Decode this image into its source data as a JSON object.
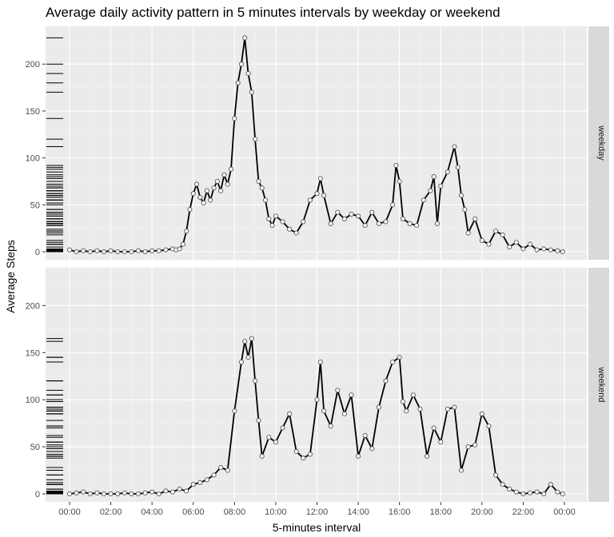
{
  "chart_data": {
    "type": "line",
    "title": "Average daily activity pattern in 5 minutes intervals by weekday or weekend",
    "xlabel": "5-minutes interval",
    "ylabel": "Average Steps",
    "x_unit": "time of day (HH:MM)",
    "xlim": [
      "00:00",
      "23:55"
    ],
    "ylim": [
      0,
      230
    ],
    "x_ticks": [
      "00:00",
      "02:00",
      "04:00",
      "06:00",
      "08:00",
      "10:00",
      "12:00",
      "14:00",
      "16:00",
      "18:00",
      "20:00",
      "22:00",
      "00:00"
    ],
    "y_ticks": [
      0,
      50,
      100,
      150,
      200
    ],
    "grid": true,
    "legend": "none",
    "facets": [
      "weekday",
      "weekend"
    ],
    "series": [
      {
        "name": "weekday",
        "x": [
          "00:00",
          "00:20",
          "00:40",
          "01:00",
          "01:20",
          "01:40",
          "02:00",
          "02:20",
          "02:40",
          "03:00",
          "03:20",
          "03:40",
          "04:00",
          "04:20",
          "04:40",
          "05:00",
          "05:10",
          "05:20",
          "05:30",
          "05:40",
          "05:50",
          "06:00",
          "06:10",
          "06:20",
          "06:30",
          "06:40",
          "06:50",
          "07:00",
          "07:10",
          "07:20",
          "07:30",
          "07:40",
          "07:50",
          "08:00",
          "08:10",
          "08:20",
          "08:30",
          "08:40",
          "08:50",
          "09:00",
          "09:10",
          "09:20",
          "09:30",
          "09:40",
          "09:50",
          "10:00",
          "10:20",
          "10:40",
          "11:00",
          "11:20",
          "11:40",
          "12:00",
          "12:10",
          "12:20",
          "12:40",
          "13:00",
          "13:20",
          "13:40",
          "14:00",
          "14:20",
          "14:40",
          "15:00",
          "15:20",
          "15:40",
          "15:50",
          "16:00",
          "16:10",
          "16:30",
          "16:50",
          "17:10",
          "17:30",
          "17:40",
          "17:50",
          "18:00",
          "18:20",
          "18:40",
          "18:50",
          "19:00",
          "19:10",
          "19:20",
          "19:40",
          "20:00",
          "20:20",
          "20:40",
          "21:00",
          "21:20",
          "21:40",
          "22:00",
          "22:20",
          "22:40",
          "23:00",
          "23:20",
          "23:40",
          "23:55"
        ],
        "values": [
          2,
          0,
          1,
          0,
          1,
          0,
          1,
          0,
          0,
          0,
          1,
          0,
          1,
          1,
          2,
          3,
          2,
          3,
          8,
          22,
          45,
          62,
          72,
          58,
          52,
          65,
          55,
          68,
          75,
          65,
          82,
          72,
          88,
          142,
          180,
          200,
          228,
          190,
          170,
          120,
          75,
          68,
          55,
          35,
          28,
          38,
          32,
          24,
          20,
          32,
          55,
          62,
          78,
          60,
          30,
          42,
          35,
          40,
          38,
          28,
          42,
          30,
          32,
          50,
          92,
          75,
          35,
          30,
          28,
          55,
          65,
          80,
          30,
          70,
          85,
          112,
          90,
          60,
          45,
          20,
          35,
          12,
          8,
          22,
          18,
          5,
          10,
          3,
          8,
          2,
          3,
          2,
          1,
          0
        ]
      },
      {
        "name": "weekend",
        "x": [
          "00:00",
          "00:20",
          "00:40",
          "01:00",
          "01:20",
          "01:40",
          "02:00",
          "02:20",
          "02:40",
          "03:00",
          "03:20",
          "03:40",
          "04:00",
          "04:20",
          "04:40",
          "05:00",
          "05:20",
          "05:40",
          "06:00",
          "06:20",
          "06:40",
          "07:00",
          "07:20",
          "07:40",
          "08:00",
          "08:20",
          "08:30",
          "08:40",
          "08:50",
          "09:00",
          "09:10",
          "09:20",
          "09:40",
          "10:00",
          "10:20",
          "10:40",
          "11:00",
          "11:20",
          "11:40",
          "12:00",
          "12:10",
          "12:20",
          "12:40",
          "13:00",
          "13:20",
          "13:40",
          "14:00",
          "14:20",
          "14:40",
          "15:00",
          "15:20",
          "15:40",
          "16:00",
          "16:10",
          "16:20",
          "16:40",
          "17:00",
          "17:20",
          "17:40",
          "18:00",
          "18:20",
          "18:40",
          "19:00",
          "19:20",
          "19:40",
          "20:00",
          "20:20",
          "20:40",
          "21:00",
          "21:20",
          "21:40",
          "22:00",
          "22:20",
          "22:40",
          "23:00",
          "23:20",
          "23:40",
          "23:55"
        ],
        "values": [
          0,
          1,
          2,
          0,
          1,
          0,
          0,
          0,
          1,
          0,
          0,
          1,
          2,
          0,
          3,
          2,
          5,
          3,
          10,
          12,
          15,
          20,
          28,
          25,
          88,
          140,
          162,
          145,
          165,
          120,
          78,
          40,
          60,
          55,
          70,
          85,
          45,
          38,
          42,
          100,
          140,
          88,
          72,
          110,
          85,
          105,
          40,
          62,
          48,
          92,
          120,
          140,
          145,
          98,
          88,
          105,
          90,
          40,
          70,
          55,
          90,
          92,
          25,
          50,
          52,
          85,
          72,
          20,
          10,
          5,
          2,
          0,
          1,
          2,
          0,
          10,
          2,
          0
        ]
      }
    ]
  }
}
